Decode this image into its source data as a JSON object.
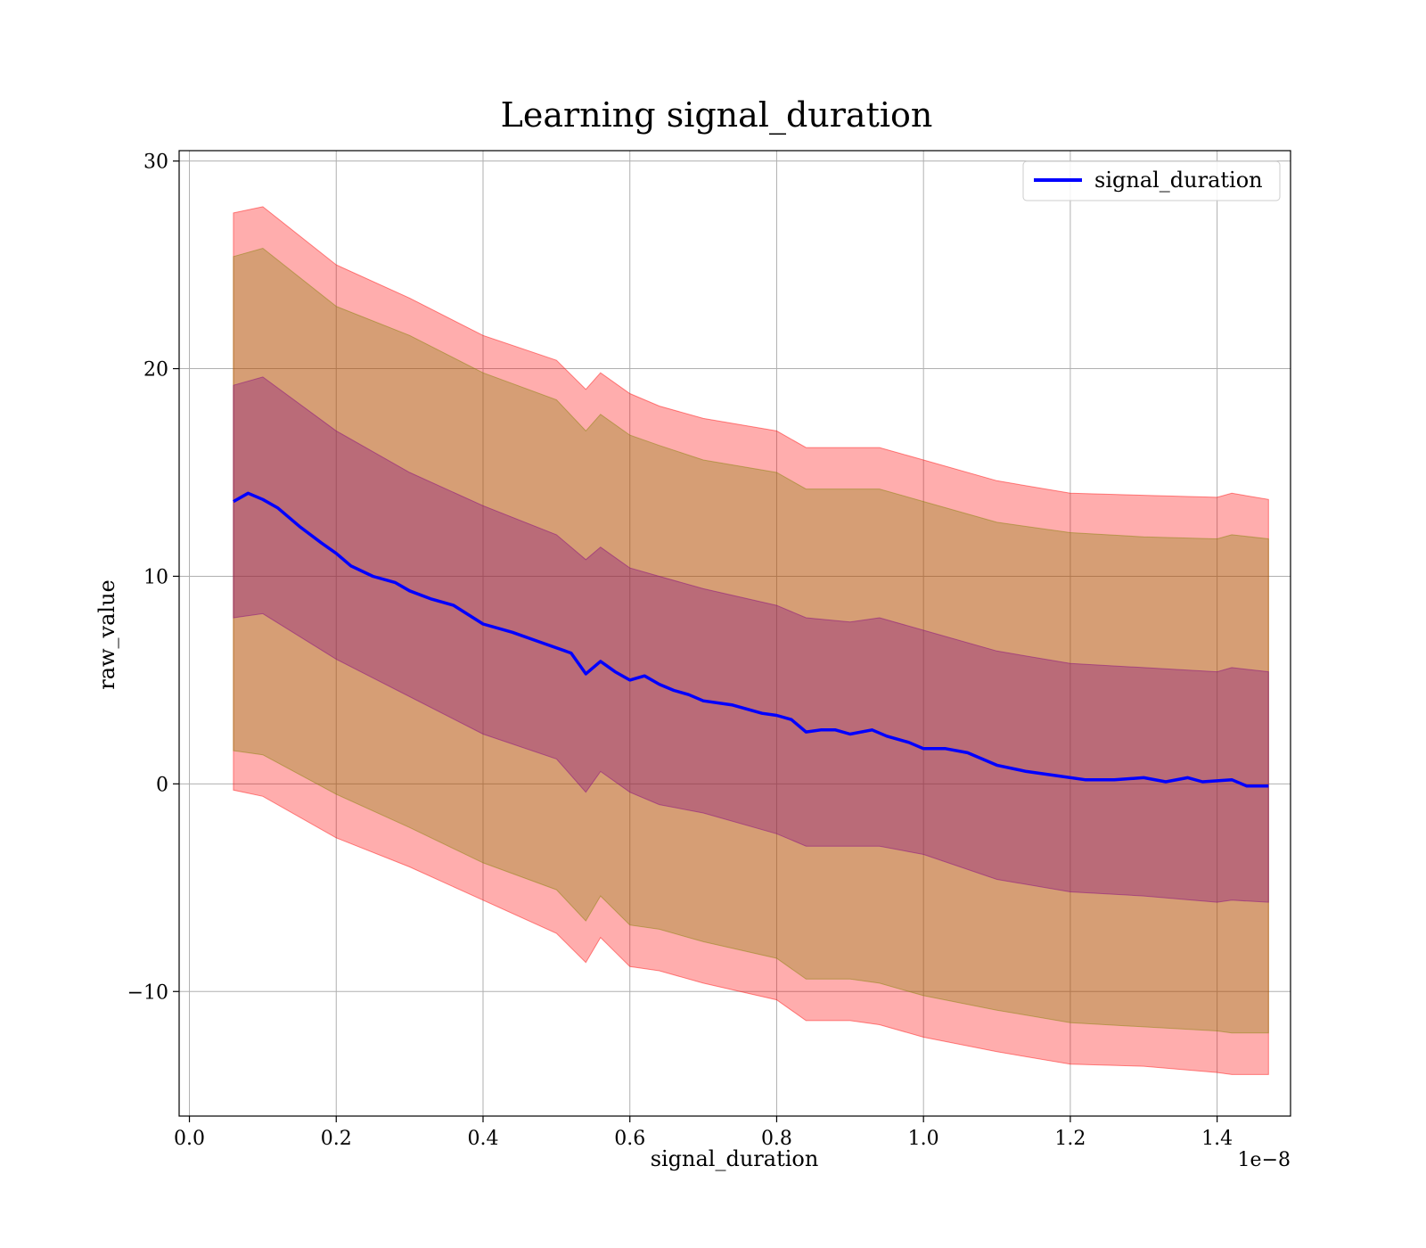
{
  "chart_data": {
    "type": "line",
    "title": "Learning signal_duration",
    "xlabel": "signal_duration",
    "ylabel": "raw_value",
    "x_offset_label": "1e−8",
    "xlim": [
      -0.014,
      1.5
    ],
    "ylim": [
      -16,
      30.5
    ],
    "x_ticks": [
      0.0,
      0.2,
      0.4,
      0.6,
      0.8,
      1.0,
      1.2,
      1.4
    ],
    "x_tick_labels": [
      "0.0",
      "0.2",
      "0.4",
      "0.6",
      "0.8",
      "1.0",
      "1.2",
      "1.4"
    ],
    "y_ticks": [
      -10,
      0,
      10,
      20,
      30
    ],
    "y_tick_labels": [
      "−10",
      "0",
      "10",
      "20",
      "30"
    ],
    "grid": true,
    "legend_position": "top-right",
    "series": [
      {
        "name": "signal_duration",
        "color": "#0000ff",
        "x": [
          0.06,
          0.08,
          0.1,
          0.12,
          0.15,
          0.18,
          0.2,
          0.22,
          0.25,
          0.28,
          0.3,
          0.33,
          0.36,
          0.4,
          0.44,
          0.48,
          0.52,
          0.54,
          0.56,
          0.58,
          0.6,
          0.62,
          0.64,
          0.66,
          0.68,
          0.7,
          0.74,
          0.78,
          0.8,
          0.82,
          0.84,
          0.86,
          0.88,
          0.9,
          0.93,
          0.95,
          0.98,
          1.0,
          1.03,
          1.06,
          1.1,
          1.14,
          1.18,
          1.22,
          1.26,
          1.3,
          1.33,
          1.36,
          1.38,
          1.42,
          1.44,
          1.47
        ],
        "y": [
          13.6,
          14.0,
          13.7,
          13.3,
          12.4,
          11.6,
          11.1,
          10.5,
          10.0,
          9.7,
          9.3,
          8.9,
          8.6,
          7.7,
          7.3,
          6.8,
          6.3,
          5.3,
          5.9,
          5.4,
          5.0,
          5.2,
          4.8,
          4.5,
          4.3,
          4.0,
          3.8,
          3.4,
          3.3,
          3.1,
          2.5,
          2.6,
          2.6,
          2.4,
          2.6,
          2.3,
          2.0,
          1.7,
          1.7,
          1.5,
          0.9,
          0.6,
          0.4,
          0.2,
          0.2,
          0.3,
          0.1,
          0.3,
          0.1,
          0.2,
          -0.1,
          -0.1
        ]
      }
    ],
    "bands": [
      {
        "color": "#ff0000",
        "opacity": 0.32,
        "x": [
          0.06,
          0.1,
          0.2,
          0.3,
          0.4,
          0.5,
          0.54,
          0.56,
          0.6,
          0.64,
          0.7,
          0.8,
          0.84,
          0.9,
          0.94,
          1.0,
          1.1,
          1.2,
          1.3,
          1.4,
          1.42,
          1.47
        ],
        "lower": [
          -0.3,
          -0.6,
          -2.6,
          -4.0,
          -5.6,
          -7.2,
          -8.6,
          -7.4,
          -8.8,
          -9.0,
          -9.6,
          -10.4,
          -11.4,
          -11.4,
          -11.6,
          -12.2,
          -12.9,
          -13.5,
          -13.6,
          -13.9,
          -14.0,
          -14.0
        ],
        "upper": [
          27.5,
          27.8,
          25.0,
          23.4,
          21.6,
          20.4,
          19.0,
          19.8,
          18.8,
          18.2,
          17.6,
          17.0,
          16.2,
          16.2,
          16.2,
          15.6,
          14.6,
          14.0,
          13.9,
          13.8,
          14.0,
          13.7
        ]
      },
      {
        "color": "#808000",
        "opacity": 0.32,
        "x": [
          0.06,
          0.1,
          0.2,
          0.3,
          0.4,
          0.5,
          0.54,
          0.56,
          0.6,
          0.64,
          0.7,
          0.8,
          0.84,
          0.9,
          0.94,
          1.0,
          1.1,
          1.2,
          1.3,
          1.4,
          1.42,
          1.47
        ],
        "lower": [
          1.6,
          1.4,
          -0.5,
          -2.1,
          -3.8,
          -5.1,
          -6.6,
          -5.4,
          -6.8,
          -7.0,
          -7.6,
          -8.4,
          -9.4,
          -9.4,
          -9.6,
          -10.2,
          -10.9,
          -11.5,
          -11.7,
          -11.9,
          -12.0,
          -12.0
        ],
        "upper": [
          25.4,
          25.8,
          23.0,
          21.6,
          19.8,
          18.5,
          17.0,
          17.8,
          16.8,
          16.3,
          15.6,
          15.0,
          14.2,
          14.2,
          14.2,
          13.6,
          12.6,
          12.1,
          11.9,
          11.8,
          12.0,
          11.8
        ]
      },
      {
        "color": "#800080",
        "opacity": 0.32,
        "x": [
          0.06,
          0.1,
          0.2,
          0.3,
          0.4,
          0.5,
          0.54,
          0.56,
          0.6,
          0.64,
          0.7,
          0.8,
          0.84,
          0.9,
          0.94,
          1.0,
          1.1,
          1.2,
          1.3,
          1.4,
          1.42,
          1.47
        ],
        "lower": [
          8.0,
          8.2,
          6.0,
          4.2,
          2.4,
          1.2,
          -0.4,
          0.6,
          -0.4,
          -1.0,
          -1.4,
          -2.4,
          -3.0,
          -3.0,
          -3.0,
          -3.4,
          -4.6,
          -5.2,
          -5.4,
          -5.7,
          -5.6,
          -5.7
        ],
        "upper": [
          19.2,
          19.6,
          17.0,
          15.0,
          13.4,
          12.0,
          10.8,
          11.4,
          10.4,
          10.0,
          9.4,
          8.6,
          8.0,
          7.8,
          8.0,
          7.4,
          6.4,
          5.8,
          5.6,
          5.4,
          5.6,
          5.4
        ]
      }
    ]
  }
}
